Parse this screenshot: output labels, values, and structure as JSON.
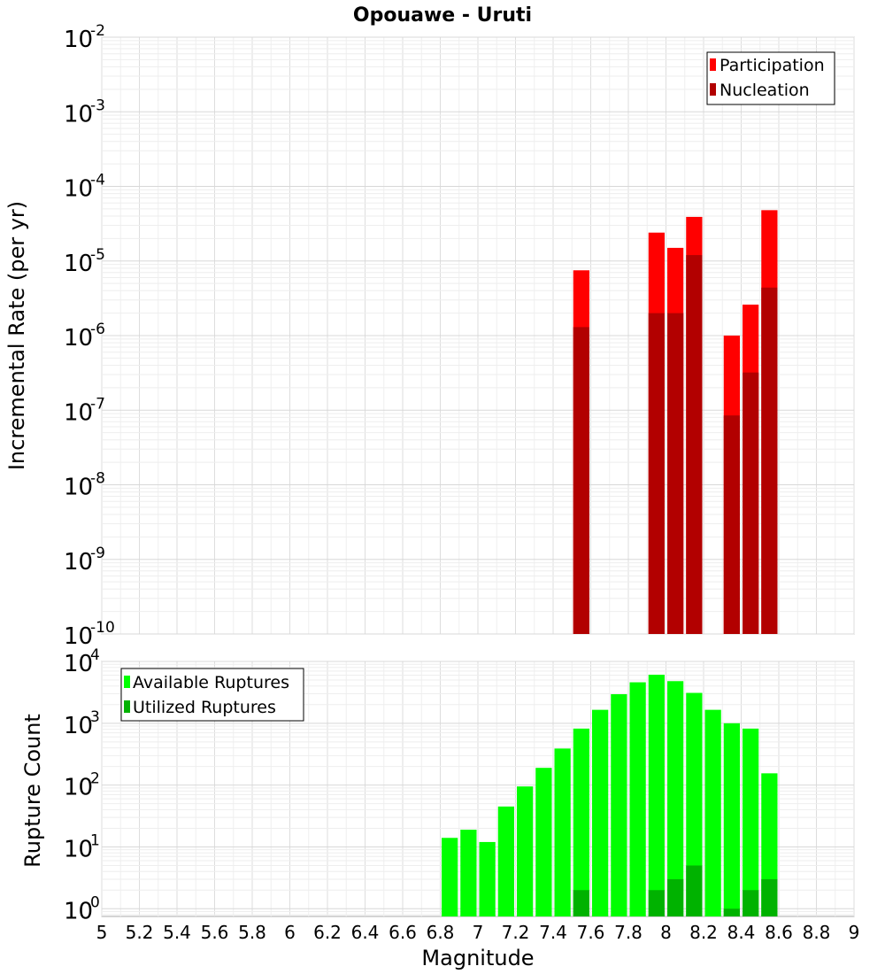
{
  "title": "Opouawe - Uruti",
  "xlabel": "Magnitude",
  "x_ticks": [
    "5",
    "5.2",
    "5.4",
    "5.6",
    "5.8",
    "6",
    "6.2",
    "6.4",
    "6.6",
    "6.8",
    "7",
    "7.2",
    "7.4",
    "7.6",
    "7.8",
    "8",
    "8.2",
    "8.4",
    "8.6",
    "8.8",
    "9"
  ],
  "chart_data": [
    {
      "type": "bar",
      "ylabel": "Incremental Rate (per yr)",
      "y_scale": "log",
      "xlim": [
        5,
        9
      ],
      "ylim": [
        1e-10,
        0.01
      ],
      "y_tick_exponents": [
        "-2",
        "-3",
        "-4",
        "-5",
        "-6",
        "-7",
        "-8",
        "-9",
        "-10"
      ],
      "y_tick_base": "10",
      "grid": true,
      "legend_position": "top-right",
      "bar_width": 0.1,
      "series": [
        {
          "name": "Participation",
          "color": "#ff0000",
          "x": [
            7.55,
            7.95,
            8.05,
            8.15,
            8.35,
            8.45,
            8.55
          ],
          "values": [
            7.5e-06,
            2.4e-05,
            1.5e-05,
            3.9e-05,
            1e-06,
            2.6e-06,
            4.8e-05
          ]
        },
        {
          "name": "Nucleation",
          "color": "#b20000",
          "x": [
            7.55,
            7.95,
            8.05,
            8.15,
            8.35,
            8.45,
            8.55
          ],
          "values": [
            1.3e-06,
            2e-06,
            2e-06,
            1.2e-05,
            8.5e-08,
            3.2e-07,
            4.4e-06
          ]
        }
      ]
    },
    {
      "type": "bar",
      "ylabel": "Rupture Count",
      "y_scale": "log",
      "xlim": [
        5,
        9
      ],
      "ylim": [
        0.75,
        10000
      ],
      "y_tick_exponents": [
        "4",
        "3",
        "2",
        "1",
        "0"
      ],
      "y_tick_base": "10",
      "grid": true,
      "legend_position": "top-left",
      "bar_width": 0.1,
      "series": [
        {
          "name": "Available Ruptures",
          "color": "#00ff00",
          "x": [
            6.85,
            6.95,
            7.05,
            7.15,
            7.25,
            7.35,
            7.45,
            7.55,
            7.65,
            7.75,
            7.85,
            7.95,
            8.05,
            8.15,
            8.25,
            8.35,
            8.45,
            8.55
          ],
          "values": [
            14,
            19,
            12,
            45,
            95,
            190,
            390,
            820,
            1650,
            2950,
            4600,
            6100,
            4800,
            3100,
            1650,
            1000,
            820,
            155
          ]
        },
        {
          "name": "Utilized Ruptures",
          "color": "#00b200",
          "x": [
            7.55,
            7.95,
            8.05,
            8.15,
            8.35,
            8.45,
            8.55
          ],
          "values": [
            2,
            2,
            3,
            5,
            1,
            2,
            3
          ]
        }
      ]
    }
  ]
}
